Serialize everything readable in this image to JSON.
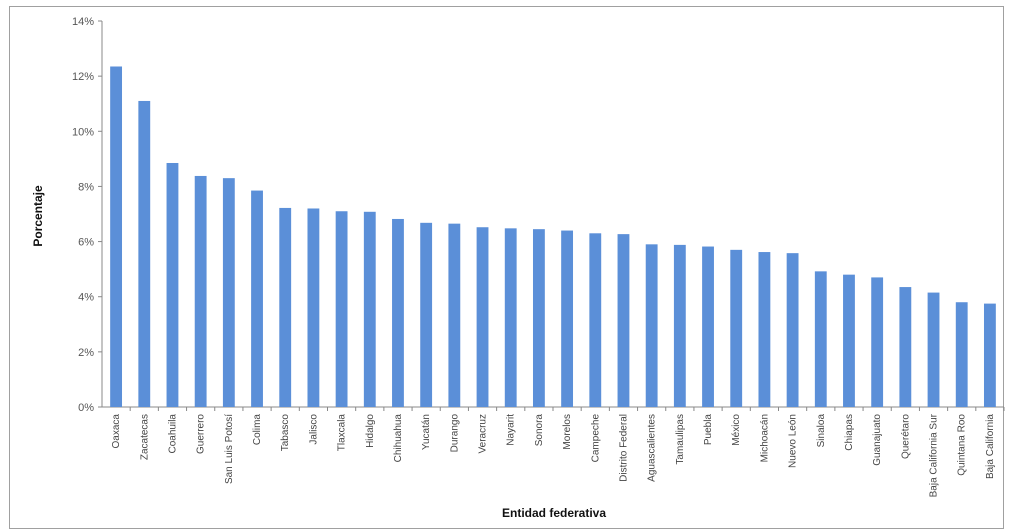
{
  "chart_data": {
    "type": "bar",
    "xlabel": "Entidad federativa",
    "ylabel": "Porcentaje",
    "ylim": [
      0,
      14
    ],
    "yticks": [
      "0%",
      "2%",
      "4%",
      "6%",
      "8%",
      "10%",
      "12%",
      "14%"
    ],
    "grid": false,
    "bar_color": "#5b8fd8",
    "categories": [
      "Oaxaca",
      "Zacatecas",
      "Coahuila",
      "Guerrero",
      "San Luis Potosí",
      "Colima",
      "Tabasco",
      "Jalisco",
      "Tlaxcala",
      "Hidalgo",
      "Chihuahua",
      "Yucatán",
      "Durango",
      "Veracruz",
      "Nayarit",
      "Sonora",
      "Morelos",
      "Campeche",
      "Distrito Federal",
      "Aguascalientes",
      "Tamaulipas",
      "Puebla",
      "México",
      "Michoacán",
      "Nuevo León",
      "Sinaloa",
      "Chiapas",
      "Guanajuato",
      "Querétaro",
      "Baja California Sur",
      "Quintana Roo",
      "Baja California"
    ],
    "values": [
      12.35,
      11.1,
      8.85,
      8.38,
      8.3,
      7.85,
      7.22,
      7.2,
      7.1,
      7.08,
      6.82,
      6.68,
      6.65,
      6.52,
      6.48,
      6.45,
      6.4,
      6.3,
      6.27,
      5.9,
      5.88,
      5.82,
      5.7,
      5.62,
      5.58,
      4.92,
      4.8,
      4.7,
      4.35,
      4.15,
      3.8,
      3.75
    ]
  }
}
